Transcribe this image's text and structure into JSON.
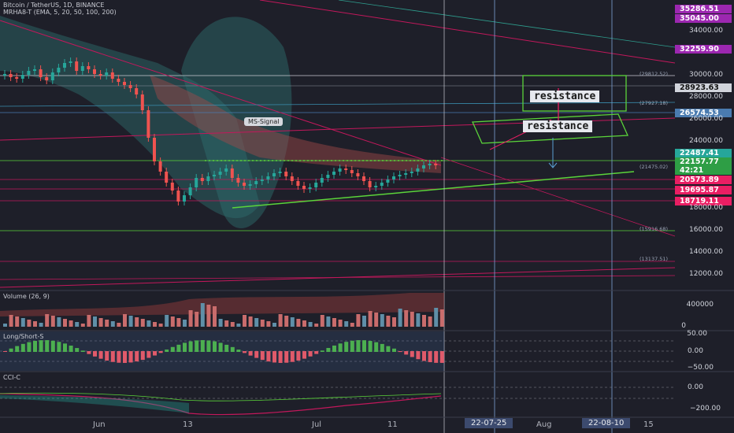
{
  "header": {
    "line1": "Bitcoin / TetherUS, 1D, BINANCE",
    "line2": "MRHA8-T (EMA, 5, 20, 50, 100, 200)"
  },
  "panes": {
    "volume": "Volume (26, 9)",
    "longshort": "Long/Short-S",
    "cci": "CCI-C"
  },
  "price_tags": [
    {
      "value": "35286.51",
      "bg": "#9c27b0",
      "fg": "#ffffff"
    },
    {
      "value": "35045.00",
      "bg": "#9c27b0",
      "fg": "#ffffff"
    },
    {
      "value": "32259.90",
      "bg": "#9c27b0",
      "fg": "#ffffff"
    },
    {
      "value": "28923.63",
      "bg": "#d1d4dc",
      "fg": "#111111"
    },
    {
      "value": "26574.53",
      "bg": "#4a7bb0",
      "fg": "#ffffff"
    },
    {
      "value": "22487.41",
      "bg": "#26a69a",
      "fg": "#ffffff"
    },
    {
      "value": "22157.77",
      "bg": "#2e9e45",
      "fg": "#ffffff"
    },
    {
      "value": "42:21",
      "bg": "#2e9e45",
      "fg": "#ffffff"
    },
    {
      "value": "20573.89",
      "bg": "#e91e63",
      "fg": "#ffffff"
    },
    {
      "value": "19695.87",
      "bg": "#e91e63",
      "fg": "#ffffff"
    },
    {
      "value": "18719.11",
      "bg": "#e91e63",
      "fg": "#ffffff"
    }
  ],
  "price_axis": [
    "34000.00",
    "30000.00",
    "28000.00",
    "26000.00",
    "24000.00",
    "18000.00",
    "16000.00",
    "14000.00",
    "12000.00"
  ],
  "volume_axis": [
    "400000",
    "0"
  ],
  "ls_axis": [
    "50.00",
    "0.00",
    "−50.00"
  ],
  "cci_axis": [
    "0.00",
    "−200.00"
  ],
  "level_labels": [
    "(29812.52)",
    "(27927.18)",
    "(21475.02)",
    "(15916.68)",
    "(13137.51)"
  ],
  "annotations": {
    "resistance_top": "resistance",
    "resistance_mid": "resistance",
    "signal": "MS-Signal"
  },
  "x_axis": {
    "labels": [
      "Jun",
      "13",
      "Jul",
      "11",
      "Aug",
      "15"
    ],
    "boxed": [
      "22-07-25",
      "22-08-10"
    ]
  },
  "colors": {
    "bg": "#1e1f29",
    "bull": "#26a69a",
    "bear": "#ef5350",
    "green_line": "#5bd43a",
    "magenta": "#c2185b",
    "cloud": "#2e6e6e"
  }
}
